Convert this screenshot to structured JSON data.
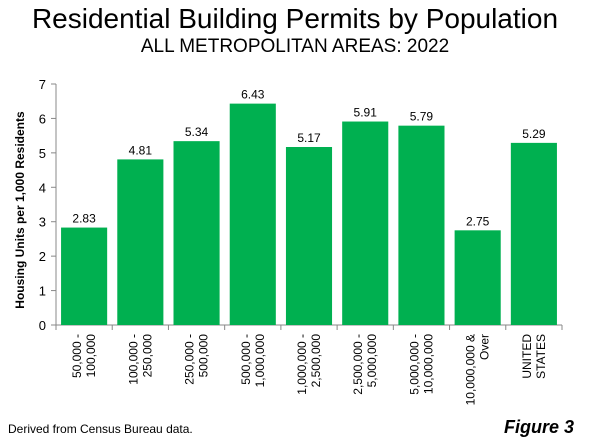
{
  "title": "Residential Building Permits by Population",
  "subtitle": "ALL METROPOLITAN AREAS: 2022",
  "source_note": "Derived from Census Bureau data.",
  "figure_label": "Figure 3",
  "colors": {
    "bar": "#00b050",
    "axis": "#888888"
  },
  "chart_data": {
    "type": "bar",
    "title": "Residential Building Permits by Population",
    "subtitle": "ALL METROPOLITAN AREAS: 2022",
    "ylabel": "Housing Units per 1,000 Residents",
    "xlabel": "",
    "ylim": [
      0,
      7
    ],
    "yticks": [
      0,
      1,
      2,
      3,
      4,
      5,
      6,
      7
    ],
    "grid": false,
    "legend": "none",
    "categories": [
      [
        "50,000 -",
        "100,000"
      ],
      [
        "100,000 -",
        "250,000"
      ],
      [
        "250,000 -",
        "500,000"
      ],
      [
        "500,000 -",
        "1,000,000"
      ],
      [
        "1,000,000 -",
        "2,500,000"
      ],
      [
        "2,500,000 -",
        "5,000,000"
      ],
      [
        "5,000,000 -",
        "10,000,000"
      ],
      [
        "10,000,000 &",
        "Over"
      ],
      [
        "UNITED",
        "STATES"
      ]
    ],
    "values": [
      2.83,
      4.81,
      5.34,
      6.43,
      5.17,
      5.91,
      5.79,
      2.75,
      5.29
    ],
    "data_labels": [
      "2.83",
      "4.81",
      "5.34",
      "6.43",
      "5.17",
      "5.91",
      "5.79",
      "2.75",
      "5.29"
    ]
  }
}
